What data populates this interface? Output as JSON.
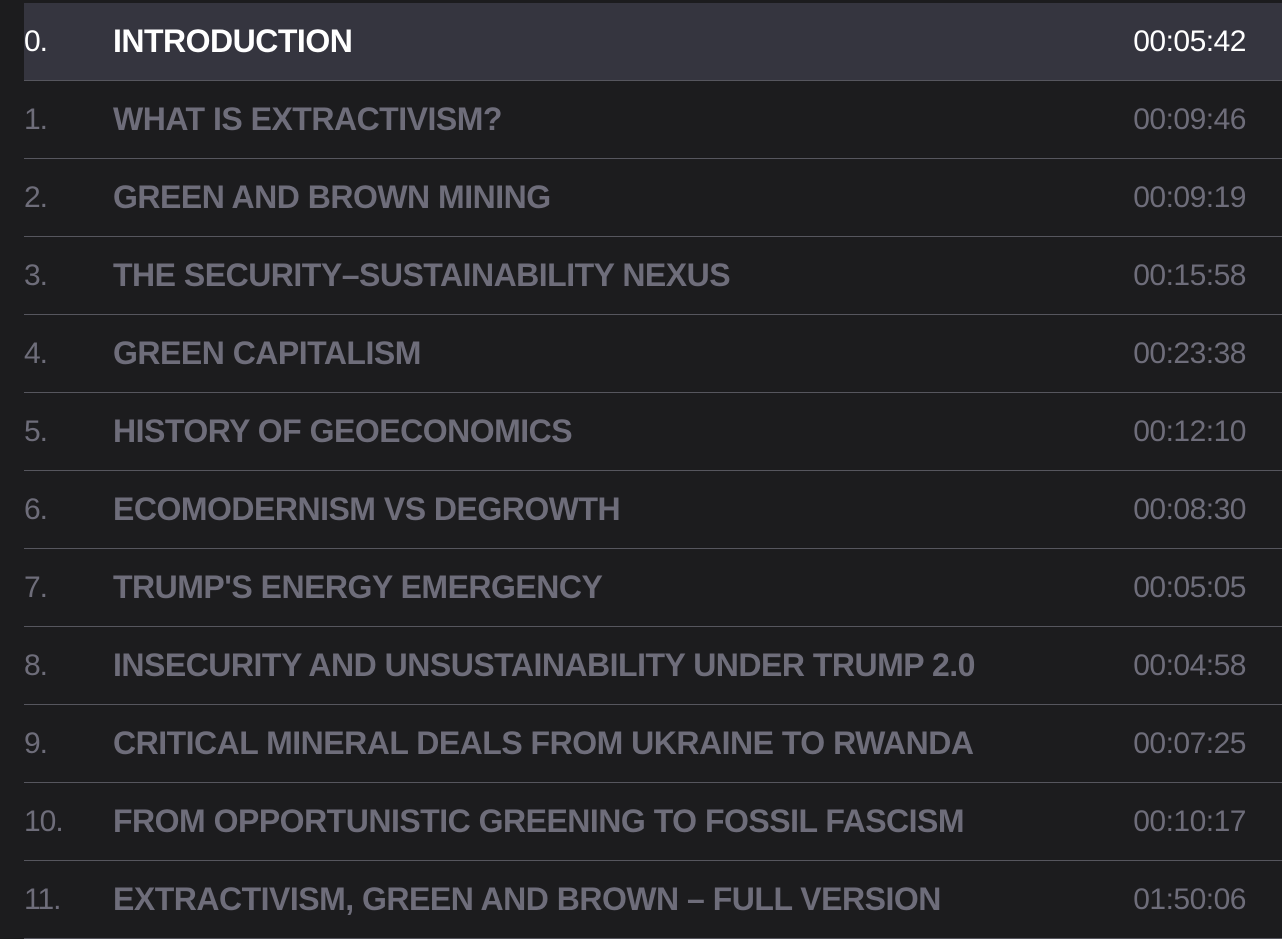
{
  "chapters": [
    {
      "number": "0.",
      "title": "INTRODUCTION",
      "duration": "00:05:42",
      "active": true
    },
    {
      "number": "1.",
      "title": "WHAT IS EXTRACTIVISM?",
      "duration": "00:09:46",
      "active": false
    },
    {
      "number": "2.",
      "title": "GREEN AND BROWN MINING",
      "duration": "00:09:19",
      "active": false
    },
    {
      "number": "3.",
      "title": "THE SECURITY–SUSTAINABILITY NEXUS",
      "duration": "00:15:58",
      "active": false
    },
    {
      "number": "4.",
      "title": "GREEN CAPITALISM",
      "duration": "00:23:38",
      "active": false
    },
    {
      "number": "5.",
      "title": "HISTORY OF GEOECONOMICS",
      "duration": "00:12:10",
      "active": false
    },
    {
      "number": "6.",
      "title": "ECOMODERNISM VS DEGROWTH",
      "duration": "00:08:30",
      "active": false
    },
    {
      "number": "7.",
      "title": "TRUMP'S ENERGY EMERGENCY",
      "duration": "00:05:05",
      "active": false
    },
    {
      "number": "8.",
      "title": "INSECURITY AND UNSUSTAINABILITY UNDER TRUMP 2.0",
      "duration": "00:04:58",
      "active": false
    },
    {
      "number": "9.",
      "title": "CRITICAL MINERAL DEALS FROM UKRAINE TO RWANDA",
      "duration": "00:07:25",
      "active": false
    },
    {
      "number": "10.",
      "title": "FROM OPPORTUNISTIC GREENING TO FOSSIL FASCISM",
      "duration": "00:10:17",
      "active": false
    },
    {
      "number": "11.",
      "title": "EXTRACTIVISM, GREEN AND BROWN – FULL VERSION",
      "duration": "01:50:06",
      "active": false
    }
  ],
  "colors": {
    "background": "#1c1c1e",
    "active_row": "#35353f",
    "active_text": "#ffffff",
    "inactive_text": "#6e6d7a",
    "divider": "#56565e"
  }
}
